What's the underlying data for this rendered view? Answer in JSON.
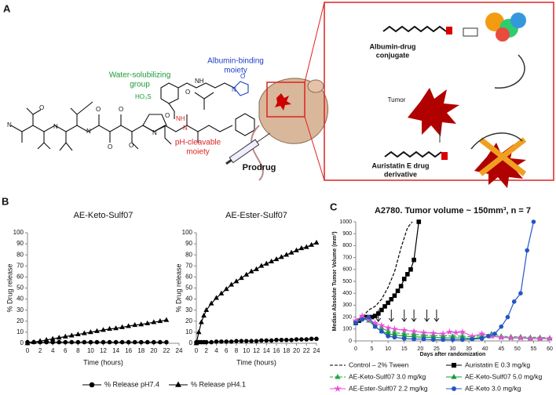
{
  "panels": [
    "A",
    "B",
    "C"
  ],
  "diagram": {
    "water": [
      "Water-solubilizing",
      "group"
    ],
    "albumin_binding": [
      "Albumin-binding",
      "moiety"
    ],
    "ph_cleavable": [
      "pH-cleavable",
      "moiety"
    ],
    "prodrug": "Prodrug",
    "conjugate": [
      "Albumin-drug",
      "conjugate"
    ],
    "tumor": "Tumor",
    "derivative": [
      "Auristatin E drug",
      "derivative"
    ],
    "atoms": [
      "N",
      "O",
      "N",
      "O",
      "N",
      "O",
      "N",
      "O",
      "O",
      "HO₃S",
      "N",
      "NH",
      "O",
      "NH",
      "O",
      "N",
      "O"
    ]
  },
  "chart_data": [
    {
      "type": "line",
      "title": "AE-Keto-Sulf07",
      "xlabel": "Time (hours)",
      "ylabel": "% Drug release",
      "xlim": [
        0,
        24
      ],
      "xticks": [
        0,
        2,
        4,
        6,
        8,
        10,
        12,
        14,
        16,
        18,
        20,
        22,
        24
      ],
      "ylim": [
        0,
        100
      ],
      "yticks": [
        0,
        10,
        20,
        30,
        40,
        50,
        60,
        70,
        80,
        90,
        100
      ],
      "series": [
        {
          "name": "% Release pH7.4",
          "color": "#000000",
          "marker": "circle",
          "x": [
            0,
            1,
            2,
            3,
            4,
            5,
            6,
            7,
            8,
            9,
            10,
            11,
            12,
            13,
            14,
            15,
            16,
            17,
            18,
            19,
            20,
            21,
            22
          ],
          "values": [
            1,
            1,
            1,
            1,
            1,
            1,
            1,
            1,
            1,
            1,
            1,
            1,
            1,
            1,
            1,
            1,
            1,
            1,
            1,
            1,
            1,
            1,
            1
          ]
        },
        {
          "name": "% Release pH4.1",
          "color": "#000000",
          "marker": "triangle",
          "x": [
            0,
            1,
            2,
            3,
            4,
            5,
            6,
            7,
            8,
            9,
            10,
            11,
            12,
            13,
            14,
            15,
            16,
            17,
            18,
            19,
            20,
            21,
            22
          ],
          "values": [
            0,
            1,
            2,
            3,
            4,
            5,
            6,
            7,
            8,
            9,
            10,
            11,
            12,
            13,
            13.5,
            14.5,
            15.5,
            16.5,
            17,
            18,
            19,
            20,
            21
          ]
        }
      ]
    },
    {
      "type": "line",
      "title": "AE-Ester-Sulf07",
      "xlabel": "Time (hours)",
      "ylabel": "% Drug release",
      "xlim": [
        0,
        24
      ],
      "xticks": [
        0,
        2,
        4,
        6,
        8,
        10,
        12,
        14,
        16,
        18,
        20,
        22,
        24
      ],
      "ylim": [
        0,
        100
      ],
      "yticks": [
        0,
        10,
        20,
        30,
        40,
        50,
        60,
        70,
        80,
        90,
        100
      ],
      "series": [
        {
          "name": "% Release pH7.4",
          "color": "#000000",
          "marker": "circle",
          "x": [
            0,
            0.5,
            1,
            1.5,
            2,
            3,
            4,
            5,
            6,
            7,
            8,
            9,
            10,
            11,
            12,
            13,
            14,
            15,
            16,
            17,
            18,
            19,
            20,
            21,
            22,
            23,
            24
          ],
          "values": [
            1,
            1,
            1,
            1,
            1,
            1,
            1.5,
            1.5,
            1.5,
            1.5,
            2,
            2,
            2,
            2,
            2,
            2.5,
            2.5,
            2.5,
            3,
            3,
            3,
            3,
            3.5,
            3.5,
            3.5,
            4,
            4
          ]
        },
        {
          "name": "% Release pH4.1",
          "color": "#000000",
          "marker": "triangle",
          "x": [
            0,
            0.5,
            1,
            1.5,
            2,
            3,
            4,
            5,
            6,
            7,
            8,
            9,
            10,
            11,
            12,
            13,
            14,
            15,
            16,
            17,
            18,
            19,
            20,
            21,
            22,
            23,
            24
          ],
          "values": [
            0,
            10,
            19,
            25,
            30,
            36,
            41,
            45,
            49,
            53,
            56,
            59,
            62,
            65,
            67,
            70,
            72,
            74,
            76,
            78,
            80,
            82,
            84,
            86,
            87,
            89,
            91
          ]
        }
      ]
    },
    {
      "type": "line",
      "title": "A2780. Tumor volume ~ 150mm³, n = 7",
      "xlabel": "Days after randomization",
      "ylabel": "Median Absolute Tumor Volume (mm³)",
      "xlim": [
        0,
        60
      ],
      "xticks": [
        0,
        5,
        10,
        15,
        20,
        25,
        30,
        35,
        40,
        45,
        50,
        55,
        60
      ],
      "ylim": [
        0,
        1000
      ],
      "yticks": [
        0,
        100,
        200,
        300,
        400,
        500,
        600,
        700,
        800,
        900,
        1000
      ],
      "dose_days": [
        7,
        11,
        15,
        18,
        22,
        25
      ],
      "series": [
        {
          "name": "Control – 2% Tween",
          "color": "#000000",
          "dashed": true,
          "marker": "none",
          "x": [
            0,
            2,
            4,
            6,
            8,
            10,
            12,
            14,
            16,
            17.5
          ],
          "values": [
            150,
            200,
            260,
            290,
            350,
            450,
            580,
            780,
            950,
            1000
          ]
        },
        {
          "name": "Auristatin E 0.3 mg/kg",
          "color": "#000000",
          "marker": "square",
          "x": [
            0,
            1,
            2,
            3,
            4,
            5,
            6,
            7,
            8,
            9,
            10,
            11,
            12,
            13,
            14,
            15,
            16,
            17,
            18,
            19.5
          ],
          "values": [
            150,
            170,
            190,
            200,
            200,
            200,
            210,
            230,
            260,
            290,
            320,
            350,
            380,
            420,
            460,
            520,
            560,
            600,
            680,
            1000
          ]
        },
        {
          "name": "AE-Keto-Sulf07 3.0 mg/kg",
          "color": "#22a845",
          "dashed": true,
          "marker": "triangle",
          "x": [
            0,
            2,
            4,
            6,
            8,
            10,
            12,
            15,
            18,
            21,
            24,
            27,
            30,
            33,
            36,
            39,
            42,
            45,
            48,
            51,
            54,
            57,
            60
          ],
          "values": [
            160,
            200,
            190,
            140,
            110,
            80,
            70,
            60,
            55,
            50,
            45,
            45,
            40,
            40,
            35,
            45,
            60,
            40,
            35,
            35,
            30,
            30,
            25
          ]
        },
        {
          "name": "AE-Keto-Sulf07 5.0 mg/kg",
          "color": "#169a3a",
          "marker": "triangle",
          "x": [
            0,
            2,
            4,
            6,
            8,
            10,
            12,
            15,
            18,
            21,
            24,
            27,
            30,
            33,
            36,
            39,
            42,
            45,
            48,
            51,
            54,
            57,
            60
          ],
          "values": [
            150,
            190,
            170,
            120,
            80,
            60,
            50,
            40,
            35,
            30,
            30,
            25,
            25,
            25,
            20,
            30,
            40,
            30,
            25,
            25,
            20,
            20,
            20
          ]
        },
        {
          "name": "AE-Ester-Sulf07 2.2 mg/kg",
          "color": "#e84fd9",
          "marker": "star",
          "x": [
            0,
            2,
            4,
            6,
            8,
            10,
            12,
            15,
            18,
            21,
            24,
            27,
            29,
            31,
            33,
            36,
            39,
            42,
            45,
            48,
            51,
            54,
            57,
            60
          ],
          "values": [
            170,
            210,
            180,
            150,
            130,
            110,
            100,
            90,
            80,
            70,
            65,
            60,
            75,
            70,
            75,
            40,
            60,
            40,
            30,
            25,
            25,
            20,
            20,
            20
          ]
        },
        {
          "name": "AE-Keto 3.0 mg/kg",
          "color": "#2355c8",
          "marker": "circle",
          "x": [
            0,
            2,
            4,
            6,
            8,
            10,
            12,
            15,
            18,
            21,
            24,
            27,
            30,
            33,
            36,
            39,
            41,
            43,
            45,
            47,
            49,
            51,
            53,
            55
          ],
          "values": [
            150,
            180,
            200,
            120,
            80,
            40,
            30,
            20,
            15,
            15,
            10,
            10,
            10,
            10,
            15,
            20,
            40,
            60,
            120,
            200,
            330,
            400,
            760,
            1000
          ]
        }
      ]
    }
  ]
}
